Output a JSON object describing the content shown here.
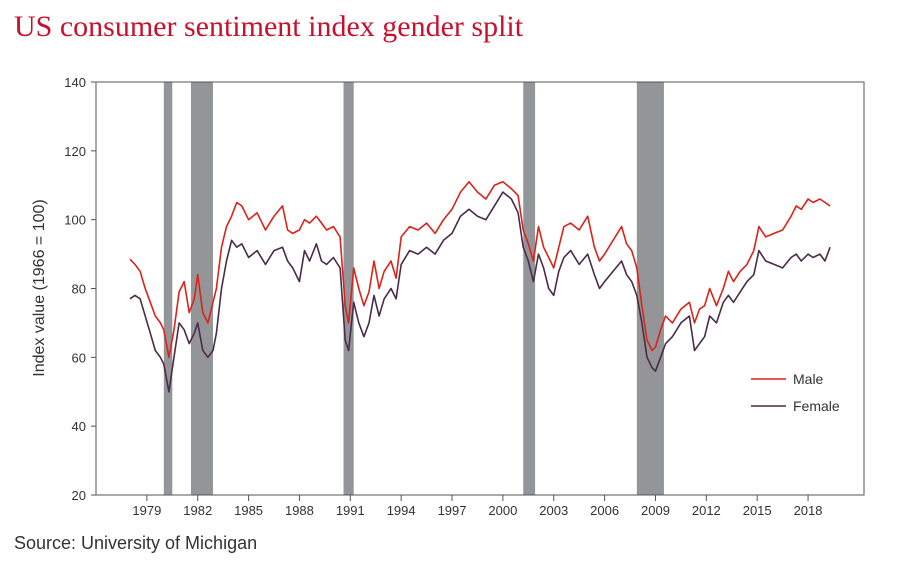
{
  "title": "US consumer sentiment index gender split",
  "source": "Source: University of Michigan",
  "colors": {
    "male": "#d9241b",
    "female": "#4a2c48",
    "recession": "#939598",
    "axis": "#333333"
  },
  "chart_data": {
    "type": "line",
    "title": "US consumer sentiment index gender split",
    "xlabel": "",
    "ylabel": "Index value (1966 = 100)",
    "ylim": [
      20,
      140
    ],
    "yticks": [
      20,
      40,
      60,
      80,
      100,
      120,
      140
    ],
    "xlim": [
      1976.0,
      2021.3
    ],
    "xticks": [
      1979,
      1982,
      1985,
      1988,
      1991,
      1994,
      1997,
      2000,
      2003,
      2006,
      2009,
      2012,
      2015,
      2018
    ],
    "xtick_labels": [
      "1979",
      "1982",
      "1985",
      "1988",
      "1991",
      "1994",
      "1997",
      "2000",
      "2003",
      "2006",
      "2009",
      "2012",
      "2015",
      "2018"
    ],
    "grid": false,
    "legend_position": "right",
    "recessions": [
      [
        1980.0,
        1980.5
      ],
      [
        1981.6,
        1982.9
      ],
      [
        1990.6,
        1991.2
      ],
      [
        2001.2,
        2001.9
      ],
      [
        2007.9,
        2009.5
      ]
    ],
    "series": [
      {
        "name": "Male",
        "color": "#d9241b",
        "x": [
          1978.0,
          1978.3,
          1978.6,
          1978.9,
          1979.2,
          1979.5,
          1979.8,
          1980.0,
          1980.3,
          1980.6,
          1980.9,
          1981.2,
          1981.5,
          1981.8,
          1982.0,
          1982.3,
          1982.6,
          1982.9,
          1983.1,
          1983.4,
          1983.7,
          1984.0,
          1984.3,
          1984.6,
          1985.0,
          1985.5,
          1986.0,
          1986.5,
          1987.0,
          1987.3,
          1987.6,
          1988.0,
          1988.3,
          1988.6,
          1989.0,
          1989.3,
          1989.6,
          1990.0,
          1990.4,
          1990.7,
          1990.9,
          1991.2,
          1991.5,
          1991.8,
          1992.1,
          1992.4,
          1992.7,
          1993.0,
          1993.4,
          1993.7,
          1994.0,
          1994.5,
          1995.0,
          1995.5,
          1996.0,
          1996.5,
          1997.0,
          1997.5,
          1998.0,
          1998.5,
          1999.0,
          1999.5,
          2000.0,
          2000.5,
          2000.9,
          2001.2,
          2001.5,
          2001.8,
          2002.1,
          2002.4,
          2002.7,
          2003.0,
          2003.3,
          2003.6,
          2004.0,
          2004.5,
          2005.0,
          2005.4,
          2005.7,
          2006.0,
          2006.5,
          2007.0,
          2007.3,
          2007.6,
          2007.9,
          2008.2,
          2008.5,
          2008.8,
          2009.0,
          2009.3,
          2009.6,
          2010.0,
          2010.5,
          2011.0,
          2011.3,
          2011.6,
          2011.9,
          2012.2,
          2012.6,
          2013.0,
          2013.3,
          2013.6,
          2014.0,
          2014.4,
          2014.8,
          2015.1,
          2015.5,
          2016.0,
          2016.5,
          2017.0,
          2017.3,
          2017.6,
          2018.0,
          2018.3,
          2018.7,
          2019.0,
          2019.3
        ],
        "values": [
          88.5,
          87.0,
          85.0,
          80.0,
          76.0,
          72.0,
          70.0,
          68.0,
          60.0,
          68.0,
          79.0,
          82.0,
          73.0,
          77.0,
          84.0,
          73.0,
          70.0,
          76.0,
          80.0,
          92.0,
          98.0,
          101.0,
          105.0,
          104.0,
          100.0,
          102.0,
          97.0,
          101.0,
          104.0,
          97.0,
          96.0,
          97.0,
          100.0,
          99.0,
          101.0,
          99.0,
          97.0,
          98.0,
          95.0,
          75.0,
          70.0,
          86.0,
          80.0,
          75.0,
          79.0,
          88.0,
          80.0,
          85.0,
          88.0,
          83.0,
          95.0,
          98.0,
          97.0,
          99.0,
          96.0,
          100.0,
          103.0,
          108.0,
          111.0,
          108.0,
          106.0,
          110.0,
          111.0,
          109.0,
          107.0,
          97.0,
          93.0,
          88.0,
          98.0,
          92.0,
          89.0,
          86.0,
          92.0,
          98.0,
          99.0,
          97.0,
          101.0,
          92.0,
          88.0,
          90.0,
          94.0,
          98.0,
          93.0,
          91.0,
          86.0,
          75.0,
          65.0,
          62.0,
          63.0,
          68.0,
          72.0,
          70.0,
          74.0,
          76.0,
          70.0,
          74.0,
          75.0,
          80.0,
          75.0,
          80.0,
          85.0,
          82.0,
          85.0,
          87.0,
          91.0,
          98.0,
          95.0,
          96.0,
          97.0,
          101.0,
          104.0,
          103.0,
          106.0,
          105.0,
          106.0,
          105.0,
          104.0
        ]
      },
      {
        "name": "Female",
        "color": "#4a2c48",
        "x": [
          1978.0,
          1978.3,
          1978.6,
          1978.9,
          1979.2,
          1979.5,
          1979.8,
          1980.0,
          1980.3,
          1980.6,
          1980.9,
          1981.2,
          1981.5,
          1981.8,
          1982.0,
          1982.3,
          1982.6,
          1982.9,
          1983.1,
          1983.4,
          1983.7,
          1984.0,
          1984.3,
          1984.6,
          1985.0,
          1985.5,
          1986.0,
          1986.5,
          1987.0,
          1987.3,
          1987.6,
          1988.0,
          1988.3,
          1988.6,
          1989.0,
          1989.3,
          1989.6,
          1990.0,
          1990.4,
          1990.7,
          1990.9,
          1991.2,
          1991.5,
          1991.8,
          1992.1,
          1992.4,
          1992.7,
          1993.0,
          1993.4,
          1993.7,
          1994.0,
          1994.5,
          1995.0,
          1995.5,
          1996.0,
          1996.5,
          1997.0,
          1997.5,
          1998.0,
          1998.5,
          1999.0,
          1999.5,
          2000.0,
          2000.5,
          2000.9,
          2001.2,
          2001.5,
          2001.8,
          2002.1,
          2002.4,
          2002.7,
          2003.0,
          2003.3,
          2003.6,
          2004.0,
          2004.5,
          2005.0,
          2005.4,
          2005.7,
          2006.0,
          2006.5,
          2007.0,
          2007.3,
          2007.6,
          2007.9,
          2008.2,
          2008.5,
          2008.8,
          2009.0,
          2009.3,
          2009.6,
          2010.0,
          2010.5,
          2011.0,
          2011.3,
          2011.6,
          2011.9,
          2012.2,
          2012.6,
          2013.0,
          2013.3,
          2013.6,
          2014.0,
          2014.4,
          2014.8,
          2015.1,
          2015.5,
          2016.0,
          2016.5,
          2017.0,
          2017.3,
          2017.6,
          2018.0,
          2018.3,
          2018.7,
          2019.0,
          2019.3
        ],
        "values": [
          77.0,
          78.0,
          77.0,
          72.0,
          67.0,
          62.0,
          60.0,
          58.0,
          50.0,
          60.0,
          70.0,
          68.0,
          64.0,
          67.0,
          70.0,
          62.0,
          60.0,
          62.0,
          67.0,
          80.0,
          88.0,
          94.0,
          92.0,
          93.0,
          89.0,
          91.0,
          87.0,
          91.0,
          92.0,
          88.0,
          86.0,
          82.0,
          91.0,
          88.0,
          93.0,
          88.0,
          87.0,
          89.0,
          86.0,
          65.0,
          62.0,
          76.0,
          70.0,
          66.0,
          70.0,
          78.0,
          72.0,
          77.0,
          80.0,
          77.0,
          87.0,
          91.0,
          90.0,
          92.0,
          90.0,
          94.0,
          96.0,
          101.0,
          103.0,
          101.0,
          100.0,
          104.0,
          108.0,
          106.0,
          102.0,
          92.0,
          88.0,
          82.0,
          90.0,
          86.0,
          80.0,
          78.0,
          85.0,
          89.0,
          91.0,
          87.0,
          90.0,
          84.0,
          80.0,
          82.0,
          85.0,
          88.0,
          84.0,
          82.0,
          78.0,
          70.0,
          60.0,
          57.0,
          56.0,
          60.0,
          64.0,
          66.0,
          70.0,
          72.0,
          62.0,
          64.0,
          66.0,
          72.0,
          70.0,
          76.0,
          78.0,
          76.0,
          79.0,
          82.0,
          84.0,
          91.0,
          88.0,
          87.0,
          86.0,
          89.0,
          90.0,
          88.0,
          90.0,
          89.0,
          90.0,
          88.0,
          92.0
        ]
      }
    ]
  }
}
